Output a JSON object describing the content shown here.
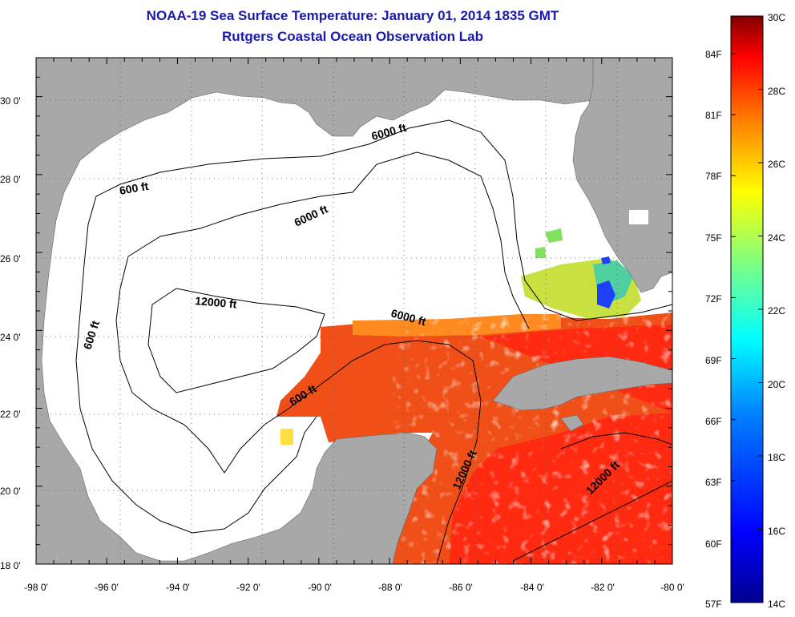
{
  "header": {
    "title": "NOAA-19 Sea Surface Temperature:  January 01, 2014 1835 GMT",
    "subtitle": "Rutgers Coastal Ocean Observation Lab"
  },
  "map": {
    "region": "Gulf of Mexico",
    "lon_range": [
      -98,
      -80
    ],
    "lat_range": [
      18,
      31
    ],
    "x_ticks": [
      "-98 0'",
      "-96 0'",
      "-94 0'",
      "-92 0'",
      "-90 0'",
      "-88 0'",
      "-86 0'",
      "-84 0'",
      "-82 0'",
      "-80 0'"
    ],
    "y_ticks": [
      "18 0'",
      "20 0'",
      "22 0'",
      "24 0'",
      "26 0'",
      "28 0'",
      "30 0'"
    ],
    "grid": "dotted",
    "land_color": "#a8a8a8",
    "no_data_color": "#ffffff",
    "contours": [
      {
        "label": "600 ft"
      },
      {
        "label": "6000 ft"
      },
      {
        "label": "6000 ft"
      },
      {
        "label": "12000 ft"
      },
      {
        "label": "6000 ft"
      },
      {
        "label": "600 ft"
      },
      {
        "label": "600 ft"
      },
      {
        "label": "12000 ft"
      },
      {
        "label": "12000 ft"
      }
    ]
  },
  "colorbar": {
    "range_c": [
      14,
      30
    ],
    "celsius_labels": [
      "30C",
      "28C",
      "26C",
      "24C",
      "22C",
      "20C",
      "18C",
      "16C",
      "14C"
    ],
    "fahrenheit_labels": [
      "84F",
      "81F",
      "78F",
      "75F",
      "72F",
      "69F",
      "66F",
      "63F",
      "60F",
      "57F"
    ],
    "colors": [
      "#00008f",
      "#0000ff",
      "#0080ff",
      "#00ffff",
      "#80ff80",
      "#ffff00",
      "#ff8000",
      "#ff0000",
      "#800000"
    ]
  }
}
